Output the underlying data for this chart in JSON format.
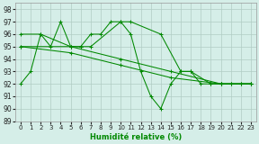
{
  "xlabel": "Humidité relative (%)",
  "xlim": [
    -0.5,
    23.5
  ],
  "ylim": [
    89,
    98.5
  ],
  "yticks": [
    89,
    90,
    91,
    92,
    93,
    94,
    95,
    96,
    97,
    98
  ],
  "xticks": [
    0,
    1,
    2,
    3,
    4,
    5,
    6,
    7,
    8,
    9,
    10,
    11,
    12,
    13,
    14,
    15,
    16,
    17,
    18,
    19,
    20,
    21,
    22,
    23
  ],
  "bg_color": "#d5eee8",
  "grid_color": "#b0ccc4",
  "line_color": "#008800",
  "lines": [
    {
      "x": [
        0,
        1,
        2,
        3,
        4,
        5,
        6,
        7,
        8,
        9,
        10,
        11,
        12,
        13,
        14,
        15,
        16,
        17,
        18,
        19,
        20,
        21,
        22,
        23
      ],
      "y": [
        92,
        93,
        96,
        95,
        97,
        95,
        95,
        96,
        96,
        97,
        97,
        96,
        93,
        91,
        90,
        92,
        93,
        93,
        92,
        92,
        92,
        92,
        92,
        92
      ]
    },
    {
      "x": [
        0,
        2,
        5,
        6,
        7,
        10,
        11,
        14,
        16,
        17,
        19,
        20,
        21,
        22,
        23
      ],
      "y": [
        96,
        96,
        95,
        95,
        95,
        97,
        97,
        96,
        93,
        93,
        92,
        92,
        92,
        92,
        92
      ]
    },
    {
      "x": [
        0,
        5,
        10,
        15,
        20,
        23
      ],
      "y": [
        95,
        95,
        94,
        93,
        92,
        92
      ]
    },
    {
      "x": [
        0,
        5,
        10,
        15,
        20,
        23
      ],
      "y": [
        95,
        94.5,
        93.5,
        92.5,
        92,
        92
      ]
    }
  ]
}
